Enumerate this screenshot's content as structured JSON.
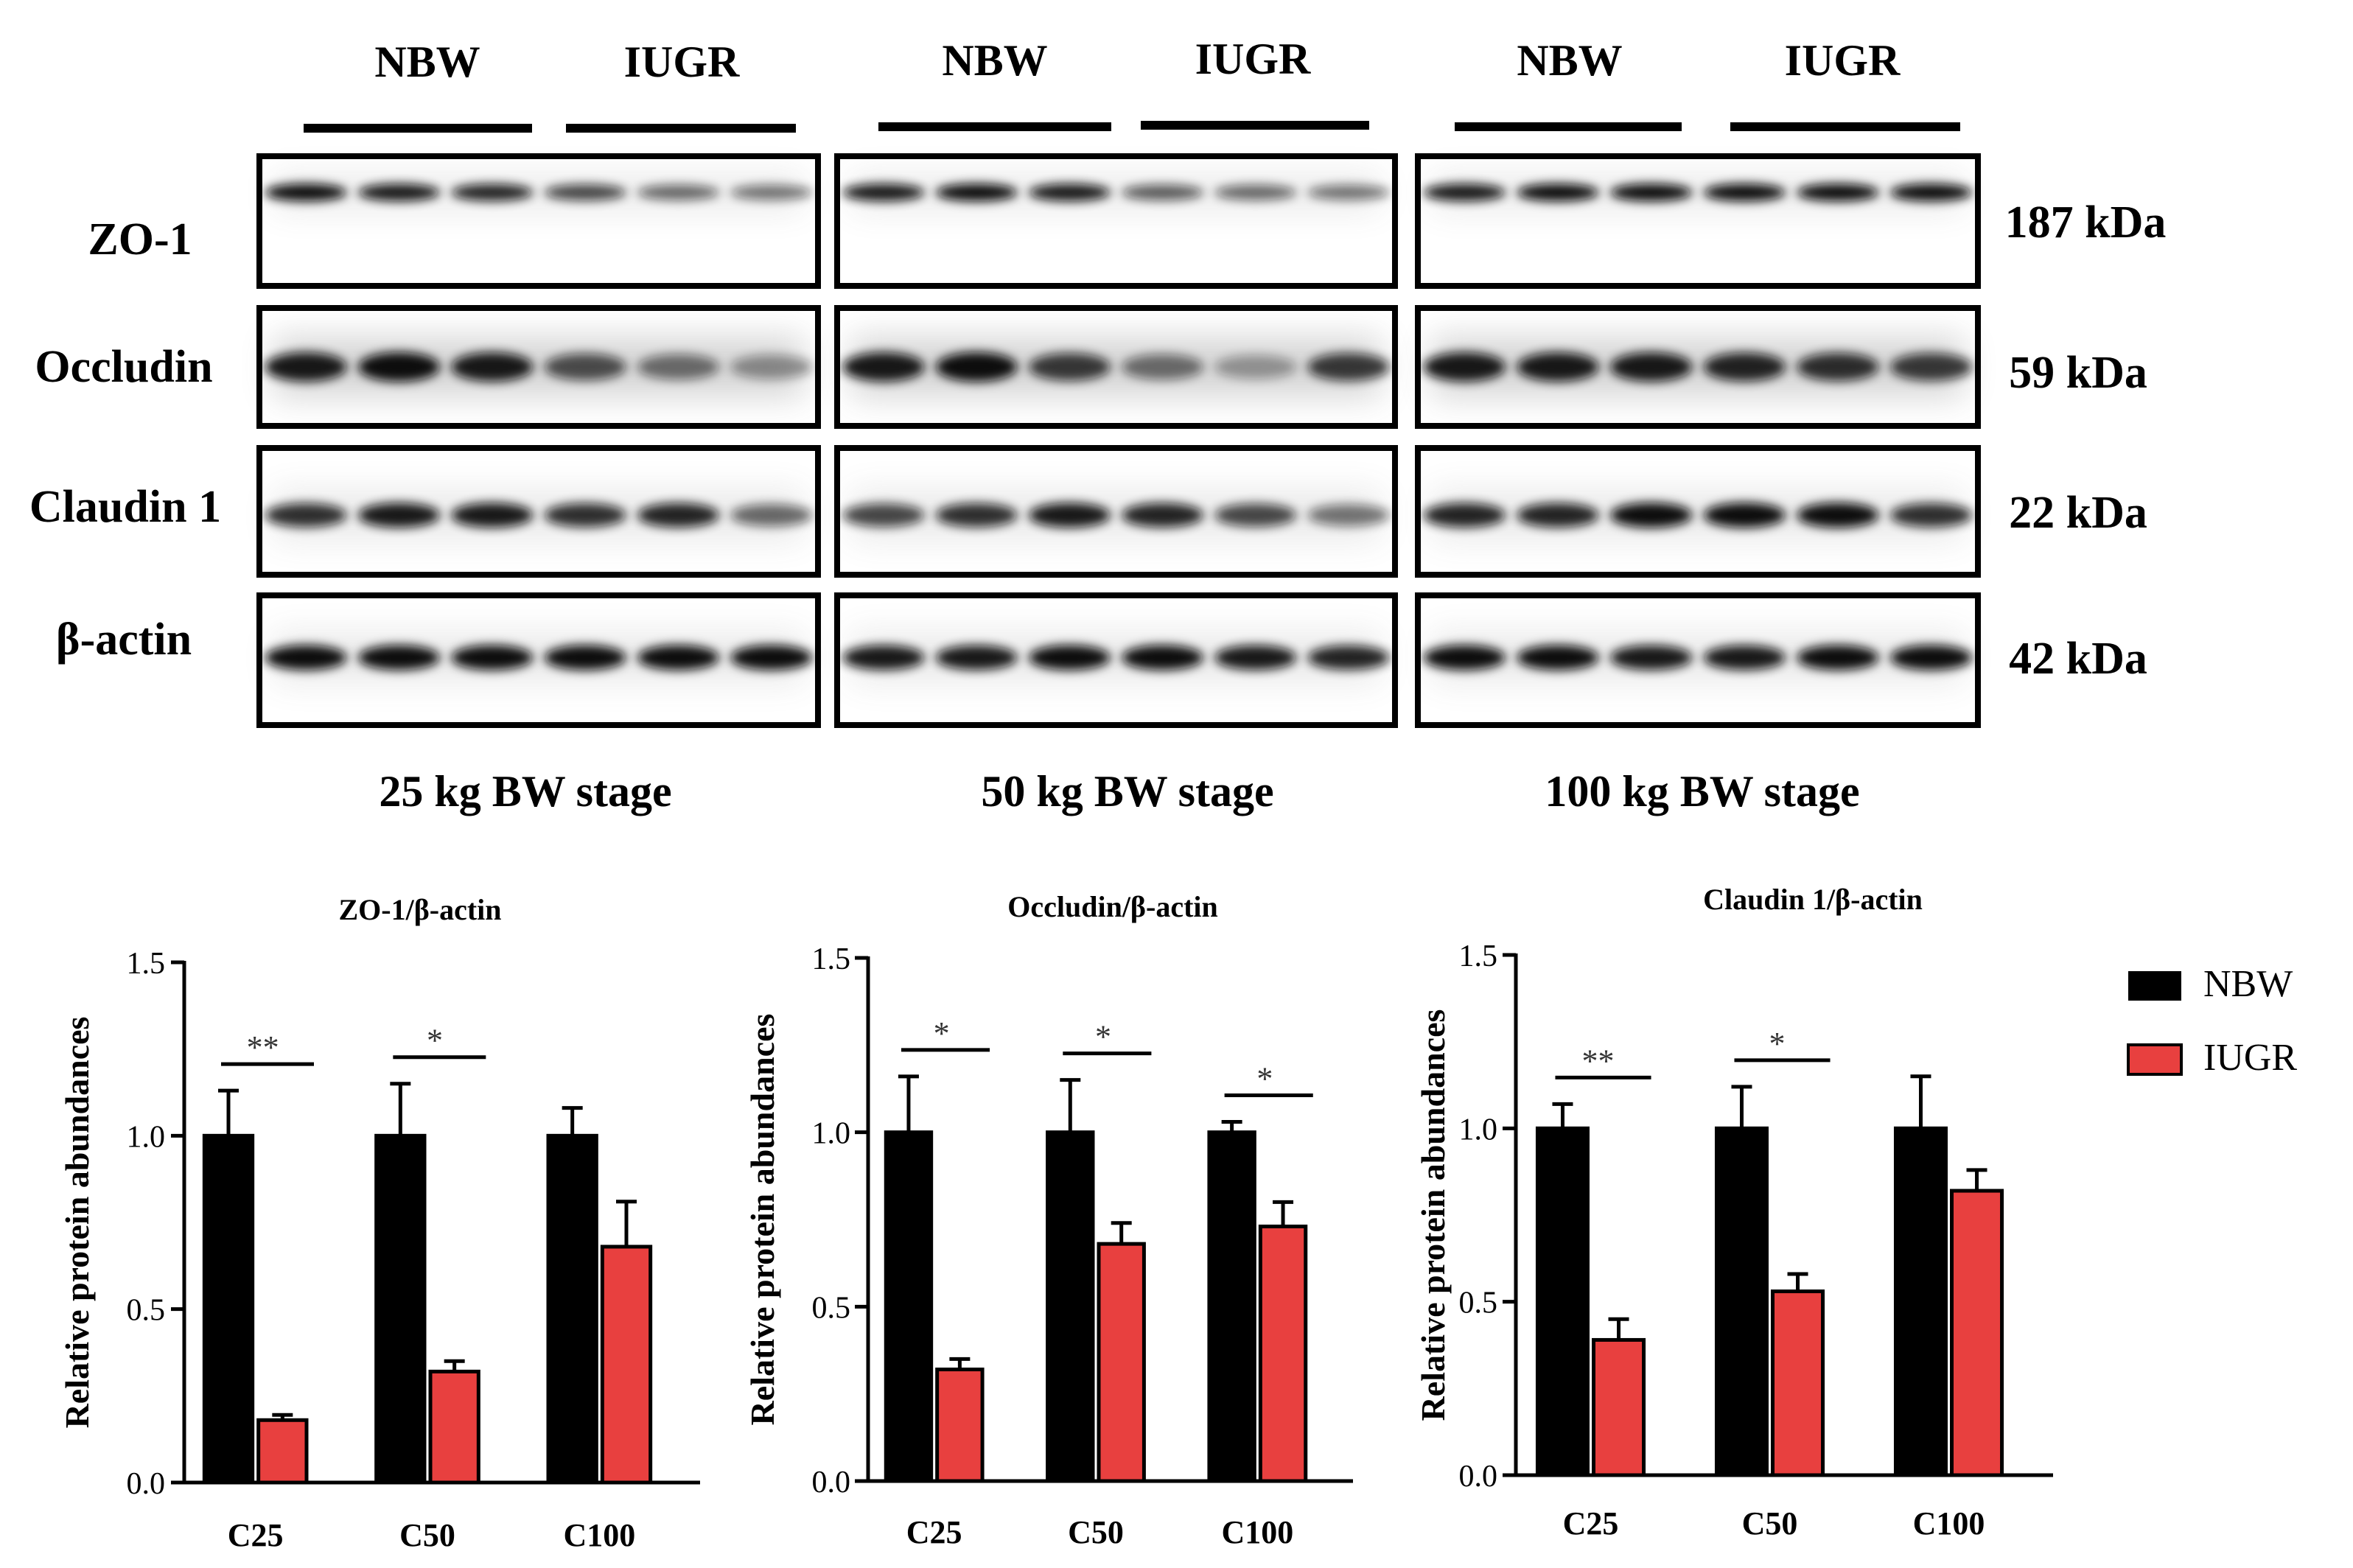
{
  "blot_panel": {
    "stages": [
      {
        "label": "25 kg BW stage",
        "groups": [
          "NBW",
          "IUGR"
        ]
      },
      {
        "label": "50 kg BW stage",
        "groups": [
          "NBW",
          "IUGR"
        ]
      },
      {
        "label": "100 kg BW stage",
        "groups": [
          "NBW",
          "IUGR"
        ]
      }
    ],
    "proteins": [
      {
        "name": "ZO-1",
        "size": "187 kDa"
      },
      {
        "name": "Occludin",
        "size": "59 kDa"
      },
      {
        "name": "Claudin 1",
        "size": "22 kDa"
      },
      {
        "name": "β-actin",
        "size": "42 kDa"
      }
    ],
    "colors": {
      "band": "#111111",
      "frame": "#000000",
      "background": "#ffffff"
    }
  },
  "chart_data": [
    {
      "type": "bar",
      "title": "ZO-1/β-actin",
      "ylabel": "Relative protein abundances",
      "xlabel": "",
      "categories": [
        "C25",
        "C50",
        "C100"
      ],
      "ylim": [
        0,
        1.5
      ],
      "yticks": [
        "0.0",
        "0.5",
        "1.0",
        "1.5"
      ],
      "series": [
        {
          "name": "NBW",
          "color": "#000000",
          "values": [
            1.0,
            1.0,
            1.0
          ],
          "errors": [
            0.13,
            0.15,
            0.08
          ]
        },
        {
          "name": "IUGR",
          "color": "#e8403f",
          "values": [
            0.18,
            0.32,
            0.68
          ],
          "errors": [
            0.015,
            0.03,
            0.13
          ]
        }
      ],
      "significance": [
        "**",
        "*",
        ""
      ]
    },
    {
      "type": "bar",
      "title": "Occludin/β-actin",
      "ylabel": "Relative protein abundances",
      "xlabel": "",
      "categories": [
        "C25",
        "C50",
        "C100"
      ],
      "ylim": [
        0,
        1.5
      ],
      "yticks": [
        "0.0",
        "0.5",
        "1.0",
        "1.5"
      ],
      "series": [
        {
          "name": "NBW",
          "color": "#000000",
          "values": [
            1.0,
            1.0,
            1.0
          ],
          "errors": [
            0.16,
            0.15,
            0.03
          ]
        },
        {
          "name": "IUGR",
          "color": "#e8403f",
          "values": [
            0.32,
            0.68,
            0.73
          ],
          "errors": [
            0.03,
            0.06,
            0.07
          ]
        }
      ],
      "significance": [
        "*",
        "*",
        "*"
      ]
    },
    {
      "type": "bar",
      "title": "Claudin 1/β-actin",
      "ylabel": "Relative protein abundances",
      "xlabel": "",
      "categories": [
        "C25",
        "C50",
        "C100"
      ],
      "ylim": [
        0,
        1.5
      ],
      "yticks": [
        "0.0",
        "0.5",
        "1.0",
        "1.5"
      ],
      "series": [
        {
          "name": "NBW",
          "color": "#000000",
          "values": [
            1.0,
            1.0,
            1.0
          ],
          "errors": [
            0.07,
            0.12,
            0.15
          ]
        },
        {
          "name": "IUGR",
          "color": "#e8403f",
          "values": [
            0.39,
            0.53,
            0.82
          ],
          "errors": [
            0.06,
            0.05,
            0.06
          ]
        }
      ],
      "significance": [
        "**",
        "*",
        ""
      ]
    }
  ],
  "legend": {
    "placement": "right",
    "items": [
      {
        "name": "NBW",
        "color": "#000000"
      },
      {
        "name": "IUGR",
        "color": "#e8403f"
      }
    ]
  }
}
